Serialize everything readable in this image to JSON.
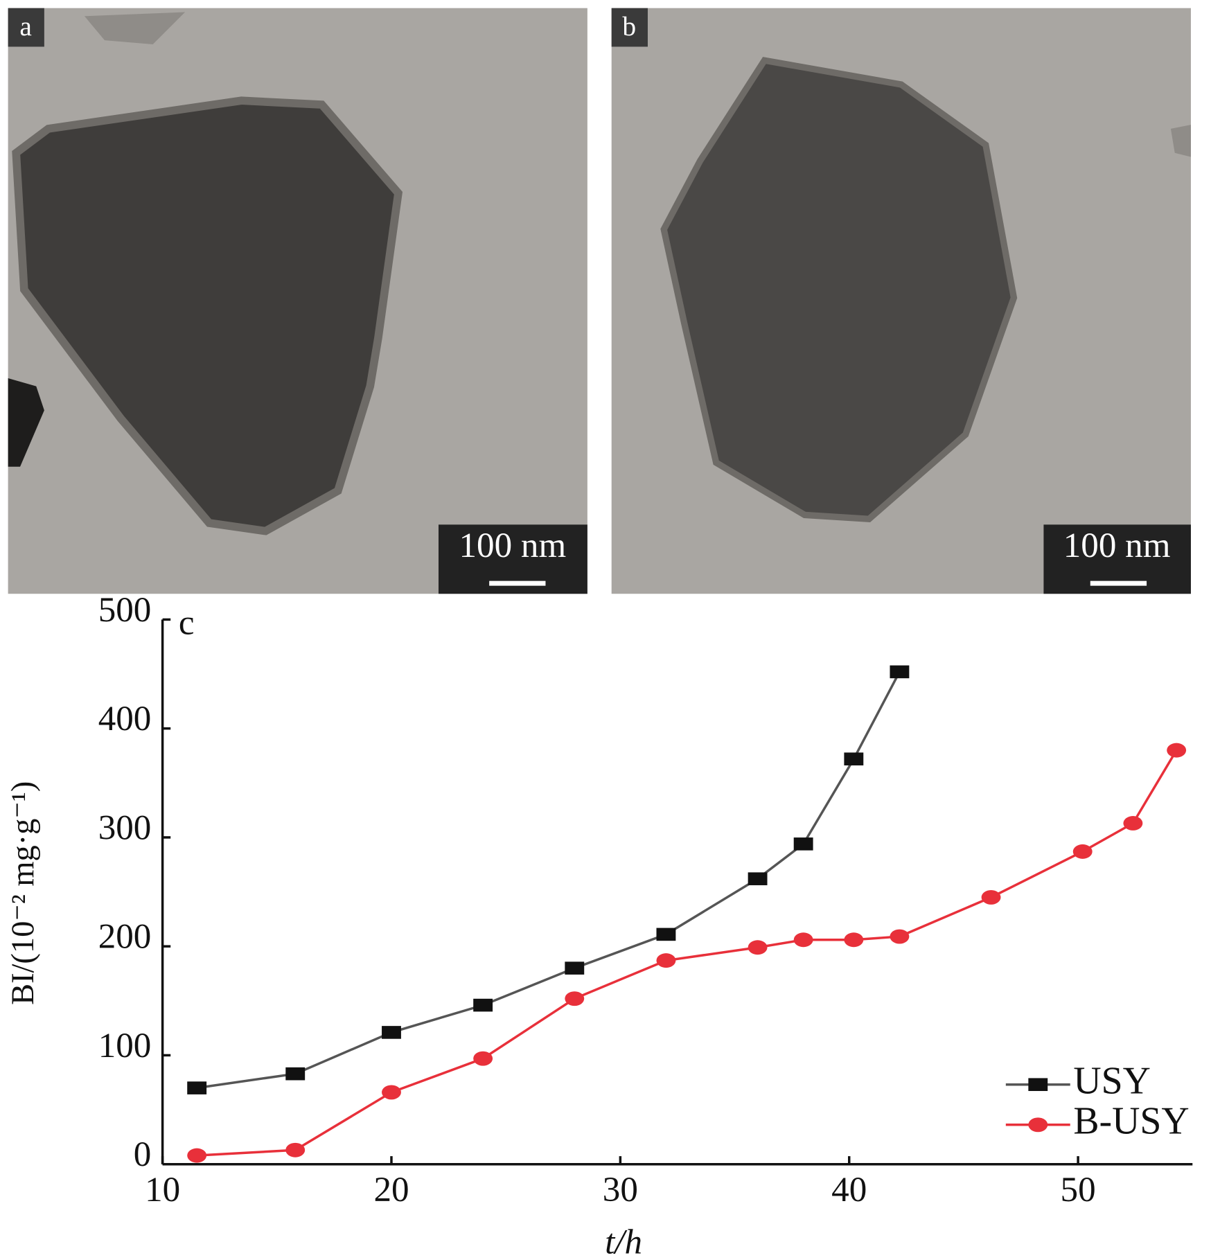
{
  "panels": {
    "a": {
      "label": "a",
      "scale": "100 nm"
    },
    "b": {
      "label": "b",
      "scale": "100 nm"
    }
  },
  "chart_data": {
    "type": "line",
    "panel_label": "c",
    "x_label": "t/h",
    "y_label": "BI/(10⁻² mg·g⁻¹)",
    "xlim": [
      10,
      55
    ],
    "ylim": [
      0,
      500
    ],
    "xticks": [
      10,
      20,
      30,
      40,
      50
    ],
    "yticks": [
      0,
      100,
      200,
      300,
      400,
      500
    ],
    "legend": "lower right",
    "series": [
      {
        "name": "USY",
        "color": "#111111",
        "line_color": "#555555",
        "marker": "square",
        "x": [
          11.5,
          15.8,
          20,
          24,
          28,
          32,
          36,
          38,
          40.2,
          42.2
        ],
        "values": [
          70,
          83,
          121,
          146,
          180,
          211,
          262,
          294,
          372,
          452
        ]
      },
      {
        "name": "B-USY",
        "color": "#e8303a",
        "line_color": "#e8303a",
        "marker": "circle",
        "x": [
          11.5,
          15.8,
          20,
          24,
          28,
          32,
          36,
          38,
          40.2,
          42.2,
          46.2,
          50.2,
          52.4,
          54.3
        ],
        "values": [
          8,
          13,
          66,
          97,
          152,
          187,
          199,
          206,
          206,
          209,
          245,
          287,
          313,
          380
        ]
      }
    ]
  }
}
